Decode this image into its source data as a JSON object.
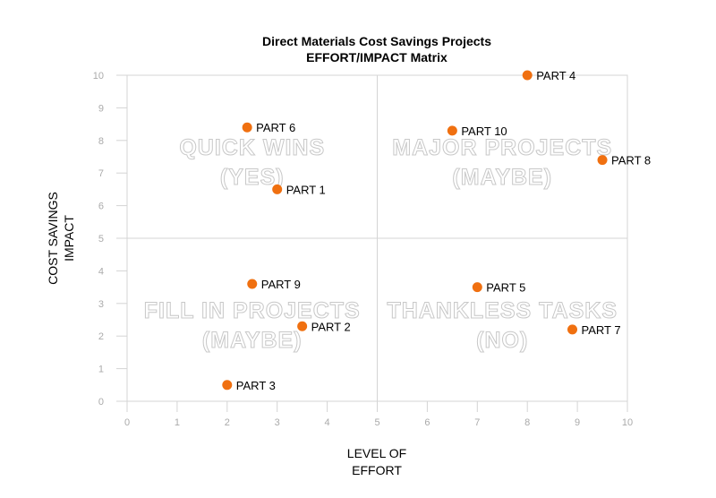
{
  "chart_data": {
    "type": "scatter",
    "title": "Direct Materials Cost Savings Projects",
    "subtitle": "EFFORT/IMPACT Matrix",
    "xlabel": [
      "LEVEL OF",
      "EFFORT"
    ],
    "ylabel": [
      "COST SAVINGS",
      "IMPACT"
    ],
    "xlim": [
      0,
      10
    ],
    "ylim": [
      0,
      10
    ],
    "xticks": [
      "0",
      "1",
      "2",
      "3",
      "4",
      "5",
      "6",
      "7",
      "8",
      "9",
      "10"
    ],
    "yticks": [
      "0",
      "1",
      "2",
      "3",
      "4",
      "5",
      "6",
      "7",
      "8",
      "9",
      "10"
    ],
    "grid": false,
    "divider": {
      "x": 5,
      "y": 5
    },
    "point_color": "#f07010",
    "quadrants": [
      {
        "lines": [
          "QUICK WINS",
          "(YES)"
        ],
        "x": 2.5,
        "y": 7.5
      },
      {
        "lines": [
          "MAJOR PROJECTS",
          "(MAYBE)"
        ],
        "x": 7.5,
        "y": 7.5
      },
      {
        "lines": [
          "FILL IN PROJECTS",
          "(MAYBE)"
        ],
        "x": 2.5,
        "y": 2.5
      },
      {
        "lines": [
          "THANKLESS TASKS",
          "(NO)"
        ],
        "x": 7.5,
        "y": 2.5
      }
    ],
    "points": [
      {
        "label": "PART 1",
        "x": 3.0,
        "y": 6.5
      },
      {
        "label": "PART 2",
        "x": 3.5,
        "y": 2.3
      },
      {
        "label": "PART 3",
        "x": 2.0,
        "y": 0.5
      },
      {
        "label": "PART 4",
        "x": 8.0,
        "y": 10.0
      },
      {
        "label": "PART 5",
        "x": 7.0,
        "y": 3.5
      },
      {
        "label": "PART 6",
        "x": 2.4,
        "y": 8.4
      },
      {
        "label": "PART 7",
        "x": 8.9,
        "y": 2.2
      },
      {
        "label": "PART 8",
        "x": 9.5,
        "y": 7.4
      },
      {
        "label": "PART 9",
        "x": 2.5,
        "y": 3.6
      },
      {
        "label": "PART 10",
        "x": 6.5,
        "y": 8.3
      }
    ]
  }
}
